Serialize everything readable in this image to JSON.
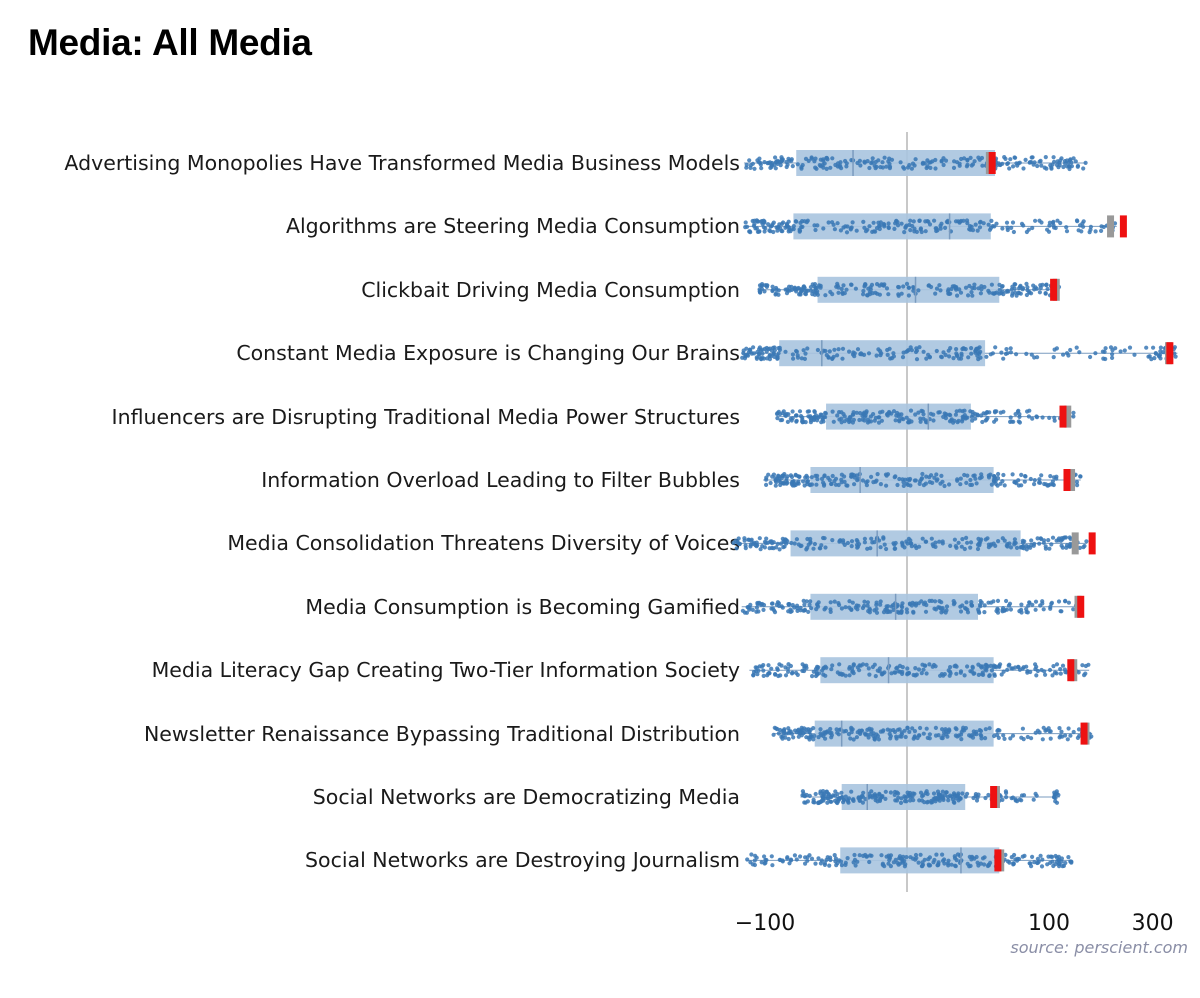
{
  "title": "Media: All Media",
  "source": "source: perscient.com",
  "colors": {
    "dots": "#3a78b5",
    "box": "#a9c4df",
    "whisker": "#7a9bbf",
    "zero_line": "#c8c8c8",
    "current_marker": "#ee1111",
    "previous_marker": "#999999"
  },
  "chart_data": {
    "type": "box-strip",
    "scale": "symlog",
    "xlim": [
      -130,
      400
    ],
    "xticks": [
      {
        "value": -100,
        "label": "−100"
      },
      {
        "value": 100,
        "label": "100"
      },
      {
        "value": 300,
        "label": "300"
      }
    ],
    "zero_line": 0,
    "series_legend": [
      "current (red marker)",
      "previous (gray marker)"
    ],
    "rows": [
      {
        "label": "Advertising Monopolies Have Transformed Media Business Models",
        "min": -125,
        "q1": -78,
        "median": -38,
        "q3": 62,
        "max": 148,
        "current": 60,
        "previous": 58
      },
      {
        "label": "Algorithms are Steering Media Consumption",
        "min": -125,
        "q1": -80,
        "median": 30,
        "q3": 59,
        "max": 205,
        "current": 220,
        "previous": 192
      },
      {
        "label": "Clickbait Driving Media Consumption",
        "min": -108,
        "q1": -63,
        "median": 6,
        "q3": 65,
        "max": 112,
        "current": 105,
        "previous": 108
      },
      {
        "label": "Constant Media Exposure is Changing Our Brains",
        "min": -128,
        "q1": -90,
        "median": -60,
        "q3": 55,
        "max": 390,
        "current": 360,
        "previous": 355
      },
      {
        "label": "Influencers are Disrupting Traditional Media Power Structures",
        "min": -92,
        "q1": -57,
        "median": 15,
        "q3": 45,
        "max": 130,
        "current": 116,
        "previous": 122
      },
      {
        "label": "Information Overload Leading to Filter Bubbles",
        "min": -102,
        "q1": -68,
        "median": -33,
        "q3": 61,
        "max": 140,
        "current": 121,
        "previous": 127
      },
      {
        "label": "Media Consolidation Threatens Diversity of Voices",
        "min": -142,
        "q1": -82,
        "median": -21,
        "q3": 80,
        "max": 150,
        "current": 158,
        "previous": 132
      },
      {
        "label": "Media Consumption is Becoming Gamified",
        "min": -128,
        "q1": -68,
        "median": -8,
        "q3": 50,
        "max": 142,
        "current": 140,
        "previous": 136
      },
      {
        "label": "Media Literacy Gap Creating Two-Tier Information Society",
        "min": -118,
        "q1": -61,
        "median": -13,
        "q3": 61,
        "max": 153,
        "current": 126,
        "previous": 130
      },
      {
        "label": "Newsletter Renaissance Bypassing Traditional Distribution",
        "min": -94,
        "q1": -65,
        "median": -46,
        "q3": 61,
        "max": 158,
        "current": 145,
        "previous": 148
      },
      {
        "label": "Social Networks are Democratizing Media",
        "min": -75,
        "q1": -46,
        "median": -28,
        "q3": 41,
        "max": 112,
        "current": 61,
        "previous": 63
      },
      {
        "label": "Social Networks are Destroying Journalism",
        "min": -122,
        "q1": -47,
        "median": 38,
        "q3": 65,
        "max": 127,
        "current": 64,
        "previous": 66
      }
    ]
  }
}
